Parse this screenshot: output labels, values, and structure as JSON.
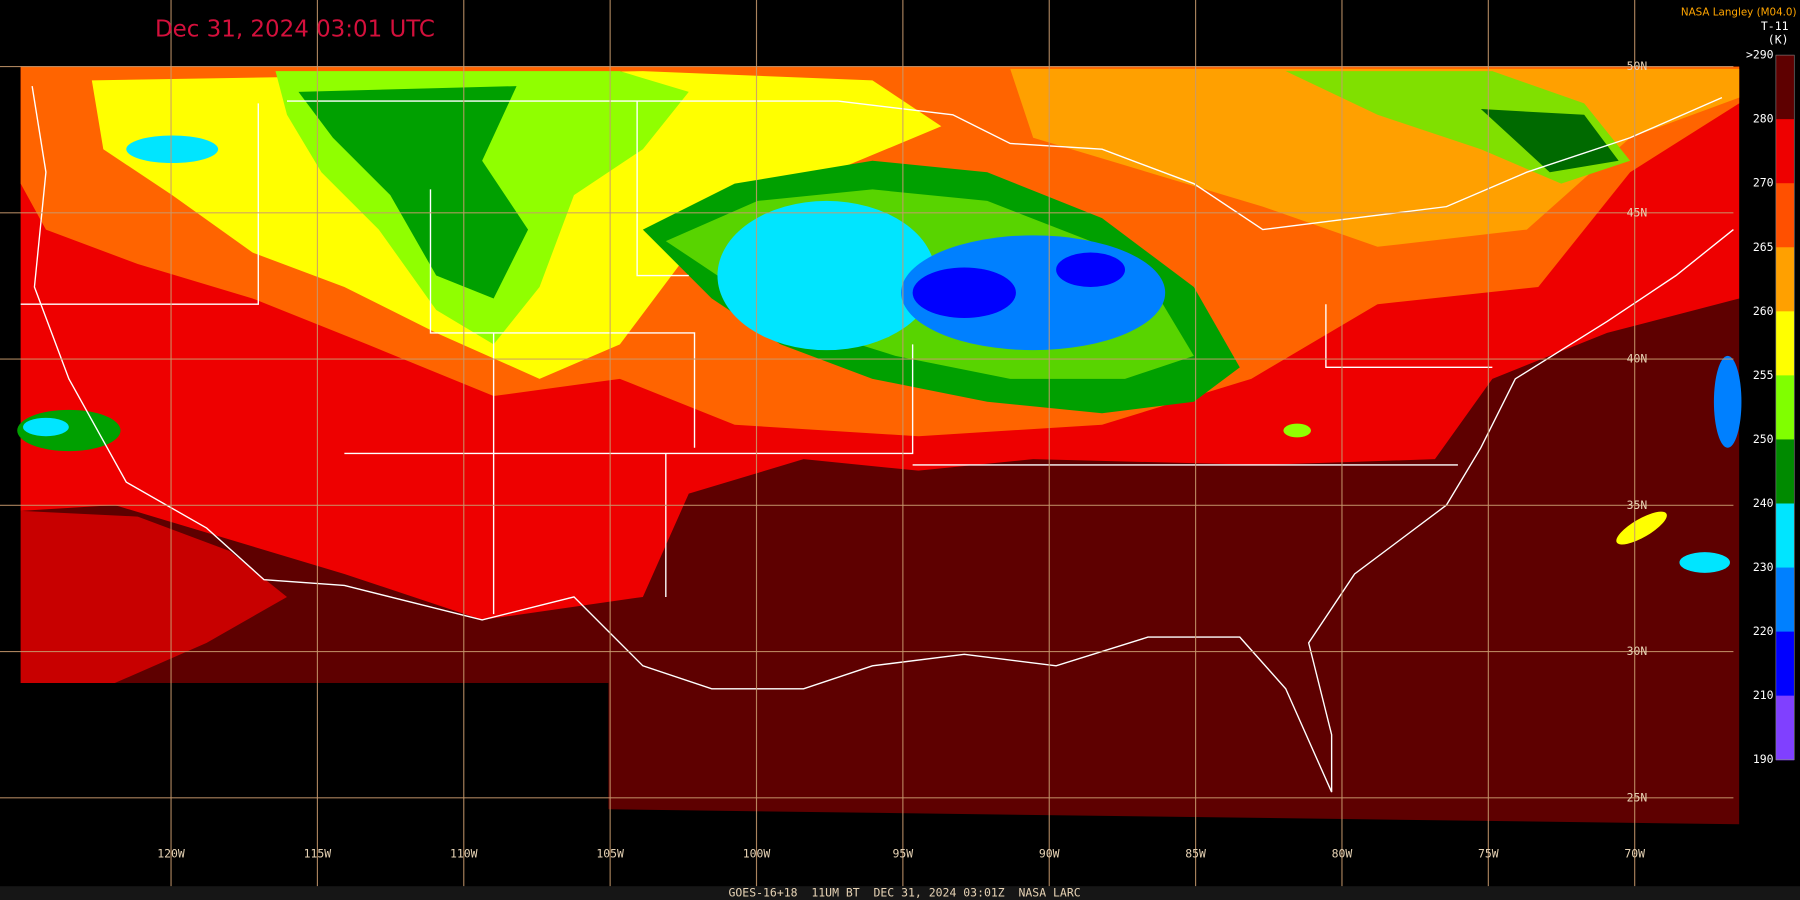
{
  "header": {
    "title": "Dec 31, 2024 03:01 UTC",
    "credit": "NASA Langley (M04.0)"
  },
  "colorbar": {
    "title": "T-11",
    "unit": "(K)",
    "labels": [
      ">290",
      "280",
      "270",
      "265",
      "260",
      "255",
      "250",
      "240",
      "230",
      "220",
      "210",
      "190"
    ]
  },
  "grid": {
    "longitudes": [
      "120W",
      "115W",
      "110W",
      "105W",
      "100W",
      "95W",
      "90W",
      "85W",
      "80W",
      "75W",
      "70W"
    ],
    "latitudes": [
      "50N",
      "45N",
      "40N",
      "35N",
      "30N",
      "25N"
    ]
  },
  "footer": "GOES-16+18  11UM BT  DEC 31, 2024 03:01Z  NASA LARC"
}
